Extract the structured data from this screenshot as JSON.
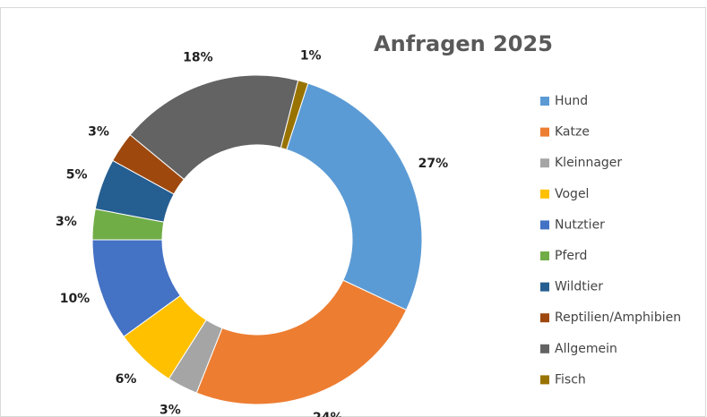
{
  "chart_data": {
    "type": "donut",
    "title": "Anfragen 2025",
    "categories": [
      "Hund",
      "Katze",
      "Kleinnager",
      "Vogel",
      "Nutztier",
      "Pferd",
      "Wildtier",
      "Reptilien/Amphibien",
      "Allgemein",
      "Fisch"
    ],
    "values": [
      27,
      24,
      3,
      6,
      10,
      3,
      5,
      3,
      18,
      1
    ],
    "value_labels": [
      "27%",
      "24%",
      "3%",
      "6%",
      "10%",
      "3%",
      "5%",
      "3%",
      "18%",
      "1%"
    ],
    "colors": [
      "#5b9bd5",
      "#ed7d31",
      "#a5a5a5",
      "#ffc000",
      "#4472c4",
      "#70ad47",
      "#255e91",
      "#9e480e",
      "#636363",
      "#997300"
    ],
    "legend": "right"
  }
}
